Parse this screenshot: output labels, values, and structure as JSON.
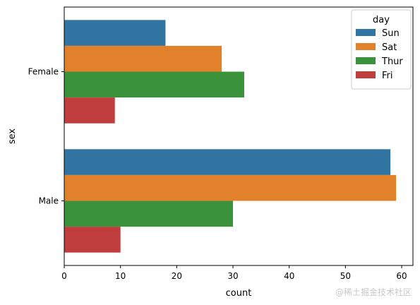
{
  "chart_data": {
    "type": "bar",
    "orientation": "horizontal",
    "categories": [
      "Female",
      "Male"
    ],
    "series": [
      {
        "name": "Sun",
        "values": [
          18,
          58
        ],
        "color": "#3274a1"
      },
      {
        "name": "Sat",
        "values": [
          28,
          59
        ],
        "color": "#e1812c"
      },
      {
        "name": "Thur",
        "values": [
          32,
          30
        ],
        "color": "#3a923a"
      },
      {
        "name": "Fri",
        "values": [
          9,
          10
        ],
        "color": "#c03d3e"
      }
    ],
    "xlabel": "count",
    "ylabel": "sex",
    "xlim": [
      0,
      62
    ],
    "xticks": [
      0,
      10,
      20,
      30,
      40,
      50,
      60
    ],
    "legend_title": "day",
    "legend_position": "top-right",
    "grid": false
  },
  "watermark": "@稀土掘金技术社区"
}
